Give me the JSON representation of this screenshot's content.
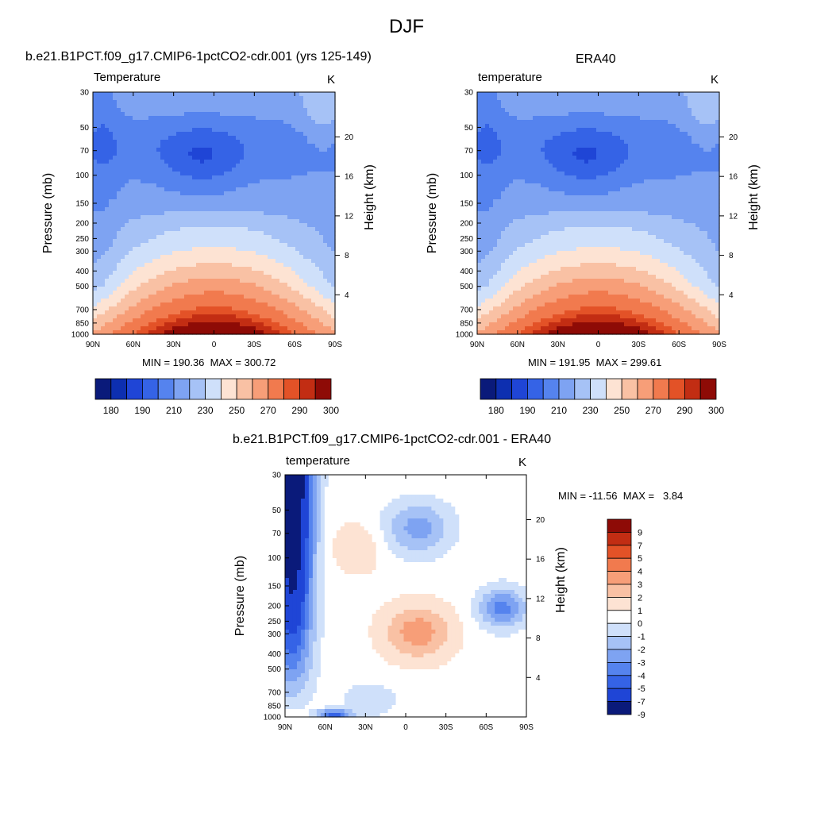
{
  "figure": {
    "title": "DJF"
  },
  "chart_data": [
    {
      "type": "heatmap",
      "title": "b.e21.B1PCT.f09_g17.CMIP6-1pctCO2-cdr.001 (yrs 125-149)",
      "left_label": "Temperature",
      "unit": "K",
      "ylabel": "Pressure (mb)",
      "ylabel_right": "Height (km)",
      "x_ticks": [
        "90N",
        "60N",
        "30N",
        "0",
        "30S",
        "60S",
        "90S"
      ],
      "y_ticks": [
        "30",
        "50",
        "70",
        "100",
        "150",
        "200",
        "250",
        "300",
        "400",
        "500",
        "700",
        "850",
        "1000"
      ],
      "y_ticks_right": [
        "20",
        "16",
        "12",
        "8",
        "4"
      ],
      "min_max_text": "MIN = 190.36  MAX = 300.72",
      "colorbar": {
        "orientation": "horizontal",
        "levels": [
          180,
          185,
          190,
          200,
          210,
          220,
          230,
          240,
          250,
          260,
          270,
          280,
          290,
          295,
          300
        ],
        "labels": [
          "180",
          "190",
          "210",
          "230",
          "250",
          "270",
          "290",
          "300"
        ],
        "colors": [
          "#0a1a7a",
          "#0d2fb0",
          "#1f45d6",
          "#3563e6",
          "#5583ee",
          "#7ea3f2",
          "#a6c2f6",
          "#cfe0fa",
          "#fde3d3",
          "#f9c1a4",
          "#f79e78",
          "#f17a4e",
          "#e35227",
          "#c22d13",
          "#8e0b06"
        ]
      },
      "field": "a"
    },
    {
      "type": "heatmap",
      "title": "ERA40",
      "left_label": "temperature",
      "unit": "K",
      "ylabel": "Pressure (mb)",
      "ylabel_right": "Height (km)",
      "x_ticks": [
        "90N",
        "60N",
        "30N",
        "0",
        "30S",
        "60S",
        "90S"
      ],
      "y_ticks": [
        "30",
        "50",
        "70",
        "100",
        "150",
        "200",
        "250",
        "300",
        "400",
        "500",
        "700",
        "850",
        "1000"
      ],
      "y_ticks_right": [
        "20",
        "16",
        "12",
        "8",
        "4"
      ],
      "min_max_text": "MIN = 191.95  MAX = 299.61",
      "colorbar": {
        "orientation": "horizontal",
        "levels": [
          180,
          185,
          190,
          200,
          210,
          220,
          230,
          240,
          250,
          260,
          270,
          280,
          290,
          295,
          300
        ],
        "labels": [
          "180",
          "190",
          "210",
          "230",
          "250",
          "270",
          "290",
          "300"
        ],
        "colors": [
          "#0a1a7a",
          "#0d2fb0",
          "#1f45d6",
          "#3563e6",
          "#5583ee",
          "#7ea3f2",
          "#a6c2f6",
          "#cfe0fa",
          "#fde3d3",
          "#f9c1a4",
          "#f79e78",
          "#f17a4e",
          "#e35227",
          "#c22d13",
          "#8e0b06"
        ]
      },
      "field": "b"
    },
    {
      "type": "heatmap",
      "title": "b.e21.B1PCT.f09_g17.CMIP6-1pctCO2-cdr.001 - ERA40",
      "left_label": "temperature",
      "unit": "K",
      "ylabel": "Pressure (mb)",
      "ylabel_right": "Height (km)",
      "x_ticks": [
        "90N",
        "60N",
        "30N",
        "0",
        "30S",
        "60S",
        "90S"
      ],
      "y_ticks": [
        "30",
        "50",
        "70",
        "100",
        "150",
        "200",
        "250",
        "300",
        "400",
        "500",
        "700",
        "850",
        "1000"
      ],
      "y_ticks_right": [
        "20",
        "16",
        "12",
        "8",
        "4"
      ],
      "min_max_text": "MIN = -11.56  MAX =   3.84",
      "colorbar": {
        "orientation": "vertical",
        "levels": [
          -9,
          -7,
          -5,
          -4,
          -3,
          -2,
          -1,
          0,
          1,
          2,
          3,
          4,
          5,
          7,
          9
        ],
        "labels": [
          "9",
          "7",
          "5",
          "4",
          "3",
          "2",
          "1",
          "0",
          "-1",
          "-2",
          "-3",
          "-4",
          "-5",
          "-7",
          "-9"
        ],
        "colors": [
          "#8e0b06",
          "#c22d13",
          "#e35227",
          "#f17a4e",
          "#f79e78",
          "#f9c1a4",
          "#fde3d3",
          "#ffffff",
          "#cfe0fa",
          "#a6c2f6",
          "#7ea3f2",
          "#5583ee",
          "#3563e6",
          "#1f45d6",
          "#0a1a7a"
        ]
      },
      "field": "d"
    }
  ]
}
